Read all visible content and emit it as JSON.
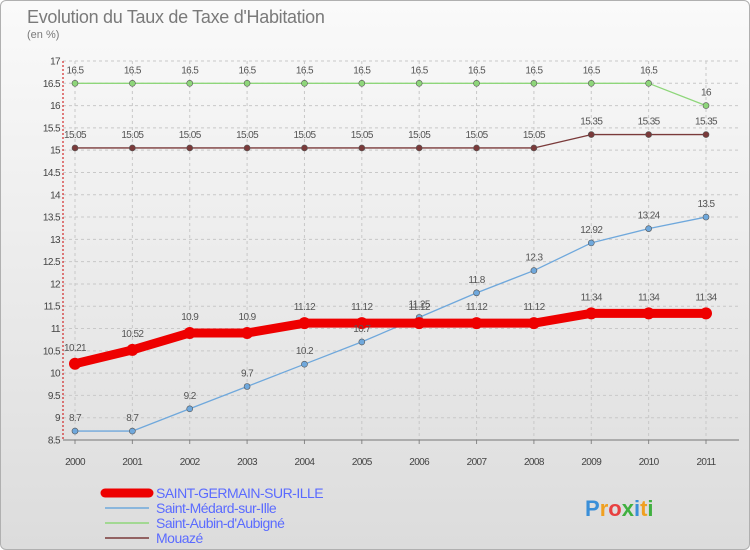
{
  "chart_data": {
    "type": "line",
    "title": "Evolution du Taux de Taxe d'Habitation",
    "subtitle": "(en %)",
    "categories": [
      "2000",
      "2001",
      "2002",
      "2003",
      "2004",
      "2005",
      "2006",
      "2007",
      "2008",
      "2009",
      "2010",
      "2011"
    ],
    "ylim": [
      8.5,
      17
    ],
    "yticks": [
      "8.5",
      "9",
      "9.5",
      "10",
      "10.5",
      "11",
      "11.5",
      "12",
      "12.5",
      "13",
      "13.5",
      "14",
      "14.5",
      "15",
      "15.5",
      "16",
      "16.5",
      "17"
    ],
    "series": [
      {
        "name": "SAINT-GERMAIN-SUR-ILLE",
        "color": "#ee0000",
        "values": [
          10.21,
          10.52,
          10.9,
          10.9,
          11.12,
          11.12,
          11.12,
          11.12,
          11.12,
          11.34,
          11.34,
          11.34
        ],
        "labels": [
          "10.21",
          "10.52",
          "10.9",
          "10.9",
          "11.12",
          "11.12",
          "11.12",
          "11.12",
          "11.12",
          "11.34",
          "11.34",
          "11.34"
        ]
      },
      {
        "name": "Saint-Médard-sur-Ille",
        "color": "#6fa8dc",
        "values": [
          8.7,
          8.7,
          9.2,
          9.7,
          10.2,
          10.7,
          11.25,
          11.8,
          12.3,
          12.92,
          13.24,
          13.5
        ],
        "labels": [
          "8.7",
          "8.7",
          "9.2",
          "9.7",
          "10.2",
          "10.7",
          "11.25",
          "11.8",
          "12.3",
          "12.92",
          "13.24",
          "13.5"
        ]
      },
      {
        "name": "Saint-Aubin-d'Aubigné",
        "color": "#8ed67a",
        "values": [
          16.5,
          16.5,
          16.5,
          16.5,
          16.5,
          16.5,
          16.5,
          16.5,
          16.5,
          16.5,
          16.5,
          16
        ],
        "labels": [
          "16.5",
          "16.5",
          "16.5",
          "16.5",
          "16.5",
          "16.5",
          "16.5",
          "16.5",
          "16.5",
          "16.5",
          "16.5",
          "16"
        ]
      },
      {
        "name": "Mouazé",
        "color": "#7a3a3a",
        "values": [
          15.05,
          15.05,
          15.05,
          15.05,
          15.05,
          15.05,
          15.05,
          15.05,
          15.05,
          15.35,
          15.35,
          15.35
        ],
        "labels": [
          "15.05",
          "15.05",
          "15.05",
          "15.05",
          "15.05",
          "15.05",
          "15.05",
          "15.05",
          "15.05",
          "15.35",
          "15.35",
          "15.35"
        ]
      }
    ]
  },
  "brand": {
    "logo_text": "Proxiti"
  }
}
